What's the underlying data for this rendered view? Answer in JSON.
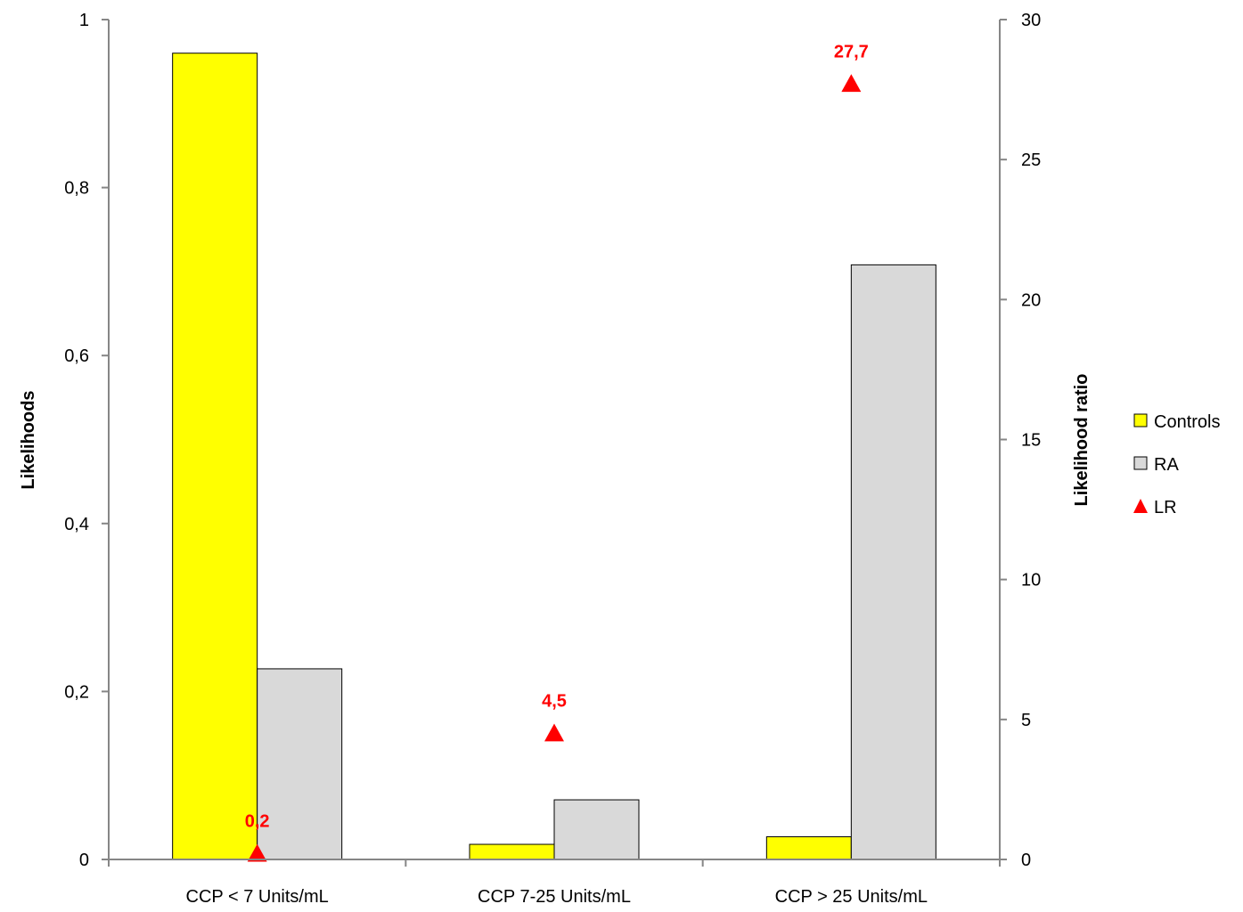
{
  "chart_data": {
    "type": "bar",
    "categories": [
      "CCP < 7 Units/mL",
      "CCP 7-25 Units/mL",
      "CCP > 25 Units/mL"
    ],
    "series": [
      {
        "name": "Controls",
        "axis": "left",
        "kind": "bar",
        "color": "#ffff00",
        "values": [
          0.96,
          0.018,
          0.027
        ]
      },
      {
        "name": "RA",
        "axis": "left",
        "kind": "bar",
        "color": "#d9d9d9",
        "values": [
          0.227,
          0.071,
          0.708
        ]
      },
      {
        "name": "LR",
        "axis": "right",
        "kind": "marker-triangle",
        "color": "#ff0000",
        "values": [
          0.2,
          4.5,
          27.7
        ],
        "labels": [
          "0,2",
          "4,5",
          "27,7"
        ]
      }
    ],
    "ylabel": "Likelihoods",
    "y2label": "Likelihood ratio",
    "ylim": [
      0,
      1
    ],
    "y2lim": [
      0,
      30
    ],
    "yticks": [
      "0",
      "0,2",
      "0,4",
      "0,6",
      "0,8",
      "1"
    ],
    "y2ticks": [
      "0",
      "5",
      "10",
      "15",
      "20",
      "25",
      "30"
    ],
    "grid": false,
    "legend_position": "right"
  }
}
